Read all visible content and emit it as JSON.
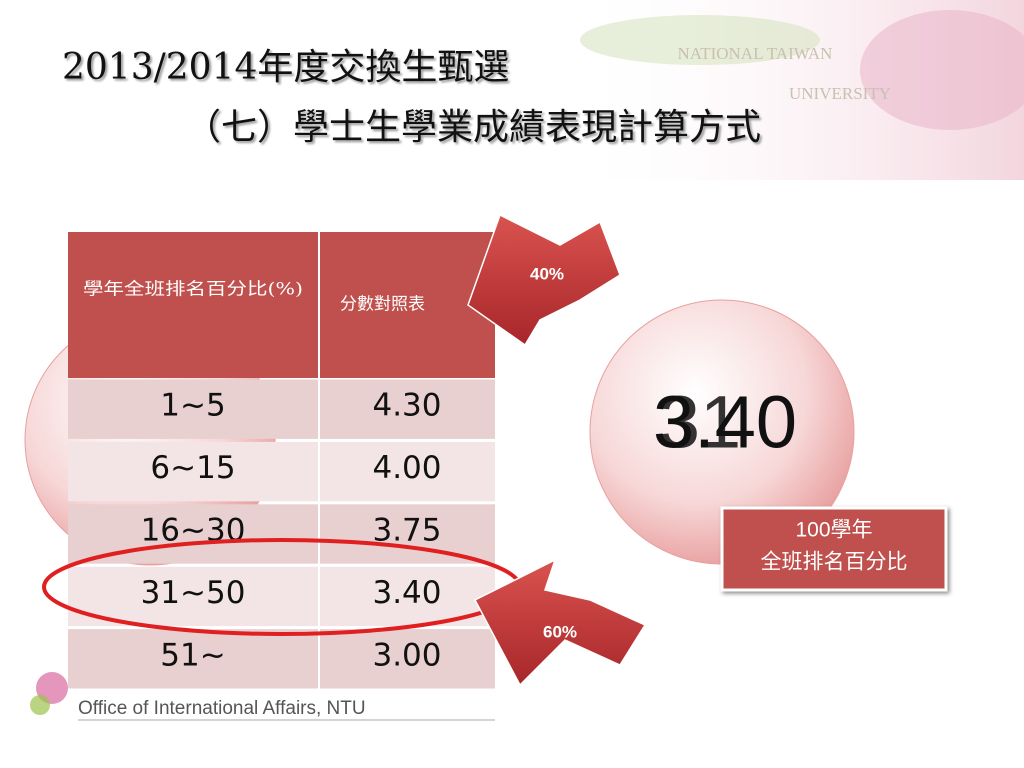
{
  "header": {
    "title_line1": "2013/2014年度交換生甄選",
    "title_line2": "（七）學士生學業成績表現計算方式",
    "watermark_line1": "NATIONAL TAIWAN",
    "watermark_line2": "UNIVERSITY"
  },
  "table": {
    "columns": [
      "學年全班排名百分比(%)",
      "分數對照表"
    ],
    "rows": [
      [
        "1~5",
        "4.30"
      ],
      [
        "6~15",
        "4.00"
      ],
      [
        "16~30",
        "3.75"
      ],
      [
        "31~50",
        "3.40"
      ],
      [
        "51~",
        "3.00"
      ]
    ]
  },
  "arrows": {
    "top": "40%",
    "bottom": "60%"
  },
  "circle": {
    "text_a": "31",
    "text_b": "3.40"
  },
  "callout": {
    "line1": "100學年",
    "line2": "全班排名百分比"
  },
  "footer": {
    "logo_text": "Office of International Affairs, NTU"
  }
}
